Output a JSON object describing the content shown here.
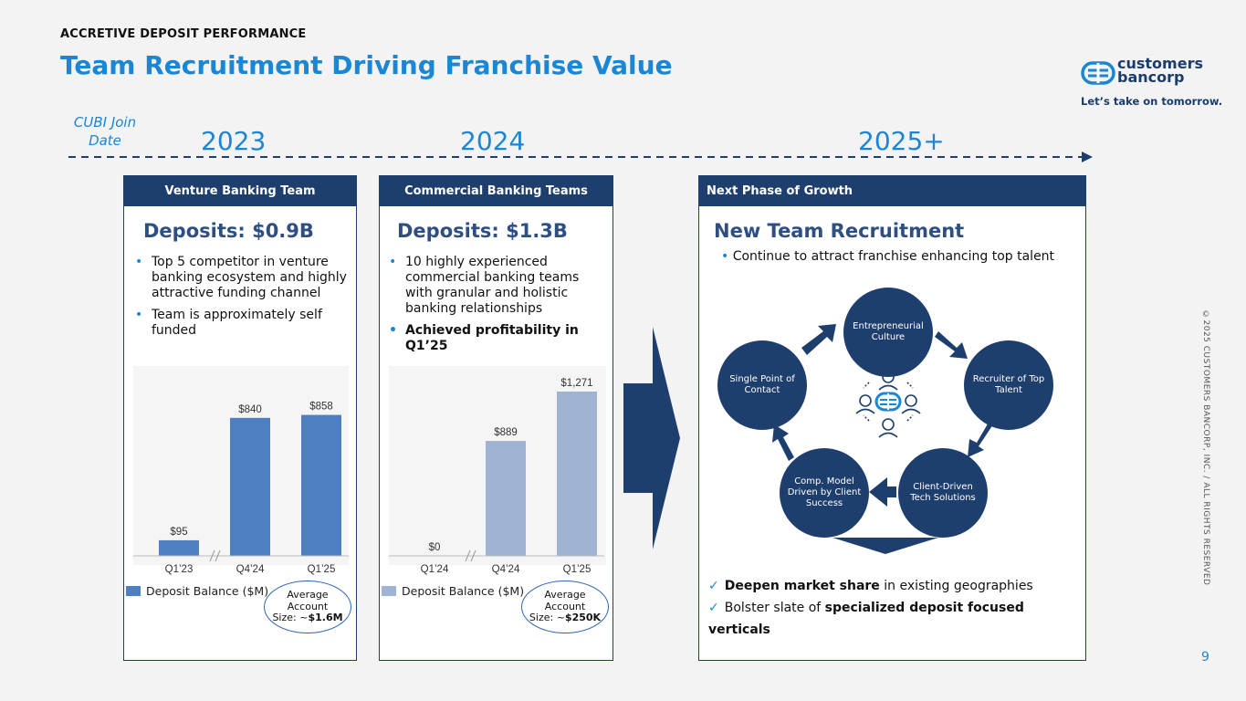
{
  "header": {
    "eyebrow": "ACCRETIVE DEPOSIT PERFORMANCE",
    "title": "Team Recruitment Driving Franchise Value",
    "logo_text_line1": "customers",
    "logo_text_line2": "bancorp",
    "tagline": "Let’s take on tomorrow."
  },
  "timeline": {
    "join_label": "CUBI Join Date",
    "years": [
      "2023",
      "2024",
      "2025+"
    ]
  },
  "venture": {
    "header": "Venture Banking Team",
    "deposits": "Deposits: $0.9B",
    "bullets": [
      "Top 5 competitor in venture banking ecosystem and highly attractive funding channel",
      "Team is approximately self funded"
    ],
    "chart_data": {
      "type": "bar",
      "categories": [
        "Q1’23",
        "Q4’24",
        "Q1’25"
      ],
      "values": [
        95,
        840,
        858
      ],
      "value_labels": [
        "$95",
        "$840",
        "$858"
      ],
      "legend": "Deposit Balance ($M)",
      "color": "#4e7fc0"
    },
    "oval_line1": "Average",
    "oval_line2": "Account",
    "oval_line3": "Size: ~",
    "oval_value": "$1.6M"
  },
  "commercial": {
    "header": "Commercial Banking Teams",
    "deposits": "Deposits: $1.3B",
    "bullets": [
      "10 highly experienced commercial banking teams with granular and holistic banking relationships",
      "Achieved profitability in Q1’25"
    ],
    "chart_data": {
      "type": "bar",
      "categories": [
        "Q1’24",
        "Q4’24",
        "Q1’25"
      ],
      "values": [
        0,
        889,
        1271
      ],
      "value_labels": [
        "$0",
        "$889",
        "$1,271"
      ],
      "legend": "Deposit Balance ($M)",
      "color": "#9fb3d2"
    },
    "oval_line1": "Average",
    "oval_line2": "Account",
    "oval_line3": "Size: ~",
    "oval_value": "$250K"
  },
  "growth": {
    "header": "Next Phase of Growth",
    "title": "New Team Recruitment",
    "bullet": "Continue to attract franchise enhancing top talent",
    "cycle": [
      "Entrepreneurial Culture",
      "Recruiter of Top Talent",
      "Client-Driven Tech Solutions",
      "Comp. Model Driven by Client Success",
      "Single Point of Contact"
    ],
    "check1_bold": "Deepen market share",
    "check1_rest": " in existing geographies",
    "check2_pre": "Bolster slate of ",
    "check2_bold": "specialized deposit focused verticals"
  },
  "footer": {
    "copyright": "©2025 CUSTOMERS BANCORP, INC. / ALL RIGHTS RESERVED",
    "page": "9"
  },
  "colors": {
    "accent": "#1a86d4",
    "navy": "#1e3f6e",
    "venture_bar": "#4e7fc0",
    "commercial_bar": "#9fb3d2"
  }
}
